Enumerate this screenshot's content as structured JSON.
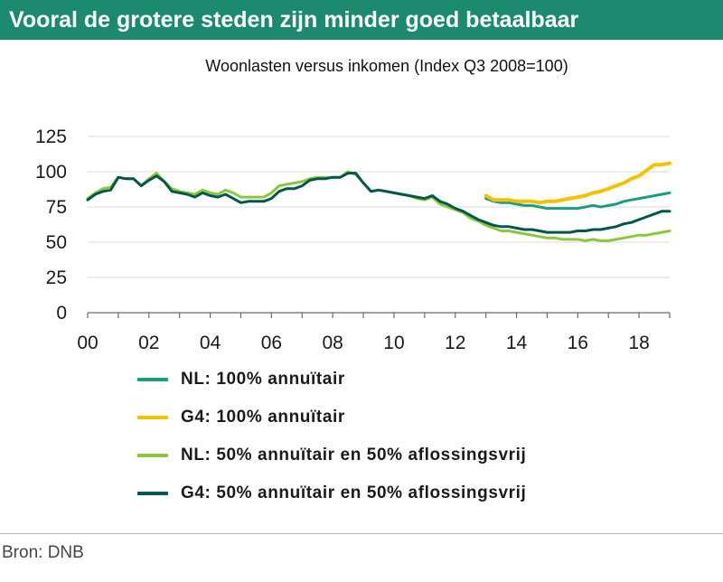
{
  "header": {
    "title": "Vooral de grotere steden zijn minder goed betaalbaar"
  },
  "source": "Bron: DNB",
  "chart_data": {
    "type": "line",
    "title": "Woonlasten versus inkomen (Index Q3 2008=100)",
    "xlabel": "",
    "ylabel": "",
    "xlim": [
      0,
      19
    ],
    "ylim": [
      0,
      125
    ],
    "xticks": [
      0,
      2,
      4,
      6,
      8,
      10,
      12,
      14,
      16,
      18
    ],
    "xtick_labels": [
      "00",
      "02",
      "04",
      "06",
      "08",
      "10",
      "12",
      "14",
      "16",
      "18"
    ],
    "yticks": [
      0,
      25,
      50,
      75,
      100,
      125
    ],
    "ytick_labels": [
      "0",
      "25",
      "50",
      "75",
      "100",
      "125"
    ],
    "grid": "horizontal",
    "legend_position": "bottom",
    "series": [
      {
        "name": "NL: 100% annuïtair",
        "color": "#1b9c85",
        "points": [
          [
            13.0,
            81
          ],
          [
            13.25,
            79
          ],
          [
            13.5,
            78
          ],
          [
            13.75,
            78
          ],
          [
            14.0,
            77
          ],
          [
            14.25,
            76
          ],
          [
            14.5,
            76
          ],
          [
            14.75,
            75
          ],
          [
            15.0,
            74
          ],
          [
            15.25,
            74
          ],
          [
            15.5,
            74
          ],
          [
            15.75,
            74
          ],
          [
            16.0,
            74
          ],
          [
            16.25,
            75
          ],
          [
            16.5,
            76
          ],
          [
            16.75,
            75
          ],
          [
            17.0,
            76
          ],
          [
            17.25,
            77
          ],
          [
            17.5,
            79
          ],
          [
            17.75,
            80
          ],
          [
            18.0,
            81
          ],
          [
            18.25,
            82
          ],
          [
            18.5,
            83
          ],
          [
            18.75,
            84
          ],
          [
            19.0,
            85
          ]
        ]
      },
      {
        "name": "G4: 100% annuïtair",
        "color": "#f2c200",
        "points": [
          [
            13.0,
            83
          ],
          [
            13.25,
            80
          ],
          [
            13.5,
            80
          ],
          [
            13.75,
            80
          ],
          [
            14.0,
            79
          ],
          [
            14.25,
            79
          ],
          [
            14.5,
            79
          ],
          [
            14.75,
            78
          ],
          [
            15.0,
            79
          ],
          [
            15.25,
            79
          ],
          [
            15.5,
            80
          ],
          [
            15.75,
            81
          ],
          [
            16.0,
            82
          ],
          [
            16.25,
            83
          ],
          [
            16.5,
            85
          ],
          [
            16.75,
            86
          ],
          [
            17.0,
            88
          ],
          [
            17.25,
            90
          ],
          [
            17.5,
            92
          ],
          [
            17.75,
            95
          ],
          [
            18.0,
            97
          ],
          [
            18.25,
            101
          ],
          [
            18.5,
            105
          ],
          [
            18.75,
            105
          ],
          [
            19.0,
            106
          ]
        ]
      },
      {
        "name": "NL: 50% annuïtair en 50% aflossingsvrij",
        "color": "#8cc63f",
        "points": [
          [
            0,
            81
          ],
          [
            0.25,
            85
          ],
          [
            0.5,
            88
          ],
          [
            0.75,
            89
          ],
          [
            1.0,
            96
          ],
          [
            1.25,
            95
          ],
          [
            1.5,
            95
          ],
          [
            1.75,
            90
          ],
          [
            2.0,
            95
          ],
          [
            2.25,
            99
          ],
          [
            2.5,
            93
          ],
          [
            2.75,
            88
          ],
          [
            3.0,
            86
          ],
          [
            3.25,
            85
          ],
          [
            3.5,
            84
          ],
          [
            3.75,
            87
          ],
          [
            4.0,
            85
          ],
          [
            4.25,
            84
          ],
          [
            4.5,
            87
          ],
          [
            4.75,
            85
          ],
          [
            5.0,
            82
          ],
          [
            5.25,
            82
          ],
          [
            5.5,
            82
          ],
          [
            5.75,
            82
          ],
          [
            6.0,
            85
          ],
          [
            6.25,
            90
          ],
          [
            6.5,
            91
          ],
          [
            6.75,
            92
          ],
          [
            7.0,
            93
          ],
          [
            7.25,
            95
          ],
          [
            7.5,
            96
          ],
          [
            7.75,
            96
          ],
          [
            8.0,
            96
          ],
          [
            8.25,
            96
          ],
          [
            8.5,
            100
          ],
          [
            8.75,
            98
          ],
          [
            9.0,
            92
          ],
          [
            9.25,
            86
          ],
          [
            9.5,
            87
          ],
          [
            9.75,
            86
          ],
          [
            10.0,
            85
          ],
          [
            10.25,
            84
          ],
          [
            10.5,
            83
          ],
          [
            10.75,
            81
          ],
          [
            11.0,
            80
          ],
          [
            11.25,
            82
          ],
          [
            11.5,
            77
          ],
          [
            11.75,
            75
          ],
          [
            12.0,
            73
          ],
          [
            12.25,
            71
          ],
          [
            12.5,
            67
          ],
          [
            12.75,
            65
          ],
          [
            13.0,
            62
          ],
          [
            13.25,
            60
          ],
          [
            13.5,
            58
          ],
          [
            13.75,
            58
          ],
          [
            14.0,
            57
          ],
          [
            14.25,
            56
          ],
          [
            14.5,
            55
          ],
          [
            14.75,
            54
          ],
          [
            15.0,
            53
          ],
          [
            15.25,
            53
          ],
          [
            15.5,
            52
          ],
          [
            15.75,
            52
          ],
          [
            16.0,
            52
          ],
          [
            16.25,
            51
          ],
          [
            16.5,
            52
          ],
          [
            16.75,
            51
          ],
          [
            17.0,
            51
          ],
          [
            17.25,
            52
          ],
          [
            17.5,
            53
          ],
          [
            17.75,
            54
          ],
          [
            18.0,
            55
          ],
          [
            18.25,
            55
          ],
          [
            18.5,
            56
          ],
          [
            18.75,
            57
          ],
          [
            19.0,
            58
          ]
        ]
      },
      {
        "name": "G4: 50% annuïtair en 50% aflossingsvrij",
        "color": "#00574b",
        "points": [
          [
            0,
            80
          ],
          [
            0.25,
            84
          ],
          [
            0.5,
            86
          ],
          [
            0.75,
            87
          ],
          [
            1.0,
            96
          ],
          [
            1.25,
            95
          ],
          [
            1.5,
            95
          ],
          [
            1.75,
            90
          ],
          [
            2.0,
            94
          ],
          [
            2.25,
            97
          ],
          [
            2.5,
            93
          ],
          [
            2.75,
            86
          ],
          [
            3.0,
            85
          ],
          [
            3.25,
            84
          ],
          [
            3.5,
            82
          ],
          [
            3.75,
            85
          ],
          [
            4.0,
            83
          ],
          [
            4.25,
            82
          ],
          [
            4.5,
            84
          ],
          [
            4.75,
            81
          ],
          [
            5.0,
            78
          ],
          [
            5.25,
            79
          ],
          [
            5.5,
            79
          ],
          [
            5.75,
            79
          ],
          [
            6.0,
            81
          ],
          [
            6.25,
            86
          ],
          [
            6.5,
            88
          ],
          [
            6.75,
            88
          ],
          [
            7.0,
            90
          ],
          [
            7.25,
            94
          ],
          [
            7.5,
            95
          ],
          [
            7.75,
            95
          ],
          [
            8.0,
            96
          ],
          [
            8.25,
            96
          ],
          [
            8.5,
            99
          ],
          [
            8.75,
            99
          ],
          [
            9.0,
            92
          ],
          [
            9.25,
            86
          ],
          [
            9.5,
            87
          ],
          [
            9.75,
            86
          ],
          [
            10.0,
            85
          ],
          [
            10.25,
            84
          ],
          [
            10.5,
            83
          ],
          [
            10.75,
            82
          ],
          [
            11.0,
            81
          ],
          [
            11.25,
            83
          ],
          [
            11.5,
            79
          ],
          [
            11.75,
            77
          ],
          [
            12.0,
            74
          ],
          [
            12.25,
            72
          ],
          [
            12.5,
            69
          ],
          [
            12.75,
            66
          ],
          [
            13.0,
            64
          ],
          [
            13.25,
            62
          ],
          [
            13.5,
            61
          ],
          [
            13.75,
            61
          ],
          [
            14.0,
            60
          ],
          [
            14.25,
            59
          ],
          [
            14.5,
            59
          ],
          [
            14.75,
            58
          ],
          [
            15.0,
            57
          ],
          [
            15.25,
            57
          ],
          [
            15.5,
            57
          ],
          [
            15.75,
            57
          ],
          [
            16.0,
            58
          ],
          [
            16.25,
            58
          ],
          [
            16.5,
            59
          ],
          [
            16.75,
            59
          ],
          [
            17.0,
            60
          ],
          [
            17.25,
            61
          ],
          [
            17.5,
            63
          ],
          [
            17.75,
            64
          ],
          [
            18.0,
            66
          ],
          [
            18.25,
            68
          ],
          [
            18.5,
            70
          ],
          [
            18.75,
            72
          ],
          [
            19.0,
            72
          ]
        ]
      }
    ]
  }
}
